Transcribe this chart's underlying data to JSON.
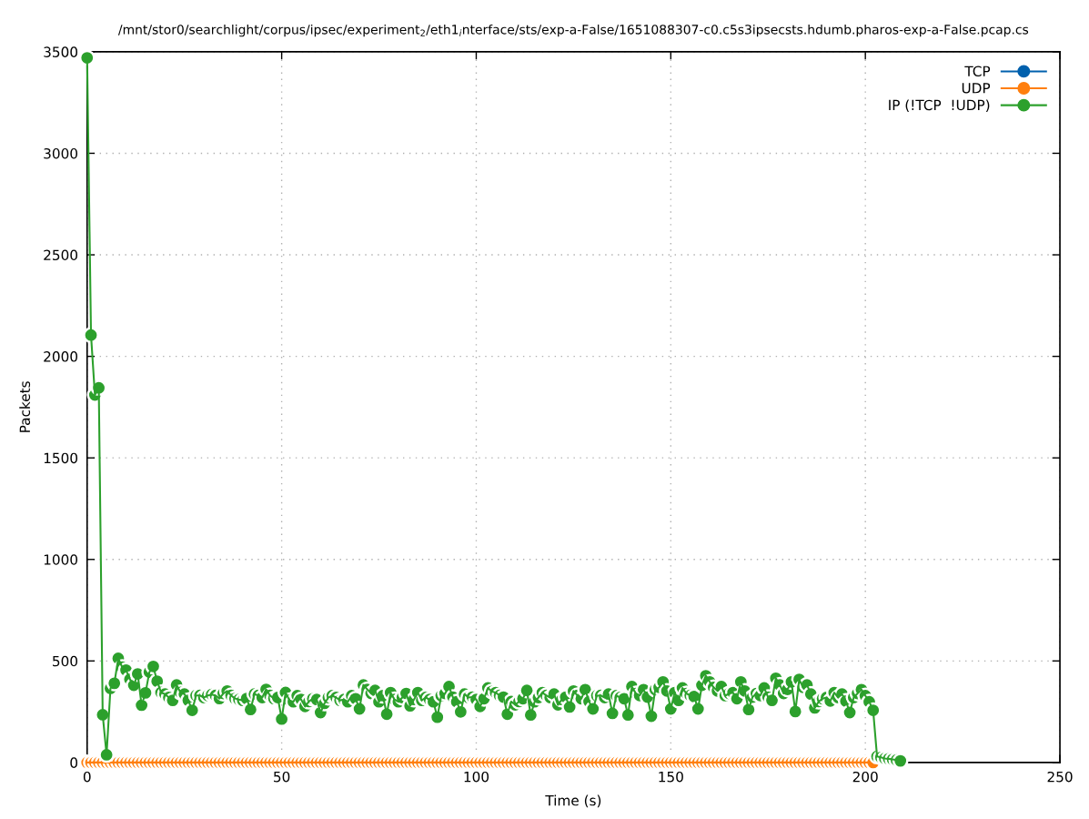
{
  "chart_data": {
    "type": "line",
    "title": "/mnt/stor0/searchlight/corpus/ipsec/experiment$_{2}$/eth1$_{i}$nterface/sts/exp-a-False/1651088307-c0.c5s3ipsecsts.hdumb.pharos-exp-a-False.pcap.cs",
    "xlabel": "Time (s)",
    "ylabel": "Packets",
    "x": [
      0,
      1,
      2,
      3,
      4,
      5,
      6,
      7,
      8,
      9,
      10,
      11,
      12,
      13,
      14,
      15,
      16,
      17,
      18,
      19,
      20,
      21,
      22,
      23,
      24,
      25,
      26,
      27,
      28,
      29,
      30,
      31,
      32,
      33,
      34,
      35,
      36,
      37,
      38,
      39,
      40,
      41,
      42,
      43,
      44,
      45,
      46,
      47,
      48,
      49,
      50,
      51,
      52,
      53,
      54,
      55,
      56,
      57,
      58,
      59,
      60,
      61,
      62,
      63,
      64,
      65,
      66,
      67,
      68,
      69,
      70,
      71,
      72,
      73,
      74,
      75,
      76,
      77,
      78,
      79,
      80,
      81,
      82,
      83,
      84,
      85,
      86,
      87,
      88,
      89,
      90,
      91,
      92,
      93,
      94,
      95,
      96,
      97,
      98,
      99,
      100,
      101,
      102,
      103,
      104,
      105,
      106,
      107,
      108,
      109,
      110,
      111,
      112,
      113,
      114,
      115,
      116,
      117,
      118,
      119,
      120,
      121,
      122,
      123,
      124,
      125,
      126,
      127,
      128,
      129,
      130,
      131,
      132,
      133,
      134,
      135,
      136,
      137,
      138,
      139,
      140,
      141,
      142,
      143,
      144,
      145,
      146,
      147,
      148,
      149,
      150,
      151,
      152,
      153,
      154,
      155,
      156,
      157,
      158,
      159,
      160,
      161,
      162,
      163,
      164,
      165,
      166,
      167,
      168,
      169,
      170,
      171,
      172,
      173,
      174,
      175,
      176,
      177,
      178,
      179,
      180,
      181,
      182,
      183,
      184,
      185,
      186,
      187,
      188,
      189,
      190,
      191,
      192,
      193,
      194,
      195,
      196,
      197,
      198,
      199,
      200,
      201,
      202,
      203,
      204,
      205,
      206,
      207,
      208,
      209
    ],
    "series": [
      {
        "name": "TCP",
        "color": "#0060ad",
        "values": [
          null,
          null,
          null,
          null,
          null,
          null,
          null,
          null,
          null,
          null,
          null,
          null,
          null,
          null,
          null,
          null,
          null,
          null,
          null,
          null,
          null,
          null,
          null,
          null,
          null,
          null,
          null,
          null,
          null,
          null,
          null,
          null,
          null,
          null,
          null,
          null,
          null,
          null,
          null,
          null,
          null,
          null,
          null,
          null,
          null,
          null,
          null,
          null,
          null,
          null,
          null,
          null,
          null,
          null,
          null,
          null,
          null,
          null,
          null,
          null,
          null,
          null,
          null,
          null,
          null,
          null,
          null,
          null,
          null,
          null,
          null,
          null,
          null,
          null,
          null,
          null,
          null,
          null,
          null,
          null,
          null,
          null,
          null,
          null,
          null,
          null,
          null,
          null,
          null,
          null,
          null,
          null,
          null,
          null,
          null,
          null,
          null,
          null,
          null,
          null,
          null,
          null,
          null,
          null,
          null,
          null,
          null,
          null,
          null,
          null,
          null,
          null,
          null,
          null,
          null,
          null,
          null,
          null,
          null,
          null,
          null,
          null,
          null,
          null,
          null,
          null,
          null,
          null,
          null,
          null,
          null,
          null,
          null,
          null,
          null,
          null,
          null,
          null,
          null,
          null,
          null,
          null,
          null,
          null,
          null,
          null,
          null,
          null,
          null,
          null,
          null,
          null,
          null,
          null,
          null,
          null,
          null,
          null,
          null,
          null,
          null,
          null,
          null,
          null,
          null,
          null,
          null,
          null,
          null,
          null,
          null,
          null,
          null,
          null,
          null,
          null,
          null,
          null,
          null,
          null,
          null,
          null,
          null,
          null,
          null,
          null,
          null,
          null,
          null,
          null,
          null,
          null,
          null,
          null,
          null,
          null,
          null,
          null,
          null,
          null,
          null,
          null,
          null,
          null,
          null,
          null,
          null,
          null,
          null,
          null
        ]
      },
      {
        "name": "UDP",
        "color": "#ff7f0e",
        "values": [
          0,
          0,
          0,
          0,
          0,
          0,
          0,
          0,
          0,
          0,
          0,
          0,
          0,
          0,
          0,
          0,
          0,
          0,
          0,
          0,
          0,
          0,
          0,
          0,
          0,
          0,
          0,
          0,
          0,
          0,
          0,
          0,
          0,
          0,
          0,
          0,
          0,
          0,
          0,
          0,
          0,
          0,
          0,
          0,
          0,
          0,
          0,
          0,
          0,
          0,
          0,
          0,
          0,
          0,
          0,
          0,
          0,
          0,
          0,
          0,
          0,
          0,
          0,
          0,
          0,
          0,
          0,
          0,
          0,
          0,
          0,
          0,
          0,
          0,
          0,
          0,
          0,
          0,
          0,
          0,
          0,
          0,
          0,
          0,
          0,
          0,
          0,
          0,
          0,
          0,
          0,
          0,
          0,
          0,
          0,
          0,
          0,
          0,
          0,
          0,
          0,
          0,
          0,
          0,
          0,
          0,
          0,
          0,
          0,
          0,
          0,
          0,
          0,
          0,
          0,
          0,
          0,
          0,
          0,
          0,
          0,
          0,
          0,
          0,
          0,
          0,
          0,
          0,
          0,
          0,
          0,
          0,
          0,
          0,
          0,
          0,
          0,
          0,
          0,
          0,
          0,
          0,
          0,
          0,
          0,
          0,
          0,
          0,
          0,
          0,
          0,
          0,
          0,
          0,
          0,
          0,
          0,
          0,
          0,
          0,
          0,
          0,
          0,
          0,
          0,
          0,
          0,
          0,
          0,
          0,
          0,
          0,
          0,
          0,
          0,
          0,
          0,
          0,
          0,
          0,
          0,
          0,
          0,
          0,
          0,
          0,
          0,
          0,
          0,
          0,
          0,
          0,
          0,
          0,
          0,
          0,
          0,
          0,
          0,
          0,
          0,
          0,
          0,
          null,
          null,
          null,
          null,
          null,
          null,
          null
        ]
      },
      {
        "name": "IP (!TCP  !UDP)",
        "color": "#2ca02c",
        "values": [
          3470,
          2105,
          1810,
          1845,
          235,
          38,
          365,
          390,
          513,
          470,
          455,
          410,
          380,
          436,
          282,
          343,
          445,
          473,
          400,
          345,
          337,
          320,
          306,
          382,
          345,
          337,
          306,
          257,
          330,
          330,
          320,
          330,
          335,
          330,
          315,
          340,
          352,
          330,
          315,
          310,
          306,
          315,
          261,
          337,
          330,
          320,
          360,
          330,
          315,
          320,
          214,
          345,
          306,
          299,
          329,
          310,
          276,
          300,
          314,
          310,
          246,
          291,
          320,
          329,
          320,
          306,
          310,
          299,
          329,
          314,
          264,
          382,
          360,
          340,
          355,
          299,
          329,
          238,
          344,
          310,
          299,
          320,
          340,
          279,
          310,
          344,
          306,
          320,
          310,
          299,
          223,
          329,
          340,
          374,
          322,
          299,
          249,
          337,
          320,
          322,
          310,
          276,
          314,
          367,
          350,
          344,
          330,
          322,
          238,
          300,
          284,
          300,
          314,
          355,
          234,
          299,
          320,
          344,
          330,
          320,
          337,
          284,
          310,
          322,
          273,
          352,
          330,
          314,
          359,
          300,
          264,
          329,
          330,
          320,
          337,
          242,
          329,
          320,
          314,
          234,
          374,
          340,
          330,
          359,
          322,
          228,
          359,
          370,
          397,
          352,
          264,
          344,
          306,
          367,
          340,
          330,
          325,
          264,
          380,
          427,
          397,
          370,
          352,
          374,
          329,
          340,
          344,
          314,
          397,
          352,
          261,
          322,
          340,
          330,
          367,
          322,
          306,
          415,
          382,
          340,
          360,
          397,
          251,
          409,
          370,
          382,
          337,
          269,
          300,
          314,
          320,
          303,
          344,
          320,
          337,
          302,
          246,
          320,
          340,
          359,
          329,
          299,
          257,
          30,
          25,
          20,
          18,
          15,
          12,
          8
        ]
      }
    ],
    "xlim": [
      0,
      250
    ],
    "ylim": [
      0,
      3500
    ],
    "xticks": [
      0,
      50,
      100,
      150,
      200,
      250
    ],
    "yticks": [
      0,
      500,
      1000,
      1500,
      2000,
      2500,
      3000,
      3500
    ],
    "grid": true,
    "legend": "top right",
    "marker": "circle",
    "line_style": "solid"
  }
}
